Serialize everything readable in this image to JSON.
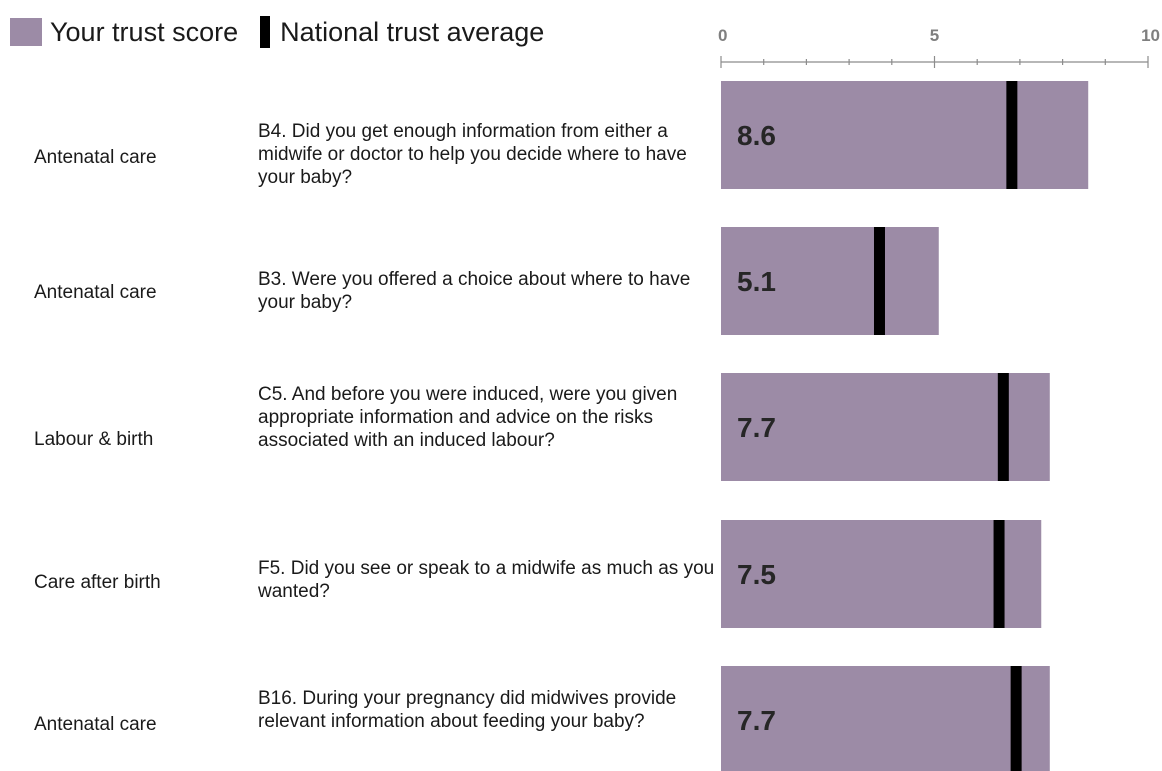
{
  "legend": {
    "score_label": "Your trust score",
    "avg_label": "National trust average"
  },
  "colors": {
    "score_bar": "#9c8ba6",
    "average_marker": "#000000",
    "axis": "#8c8c8c",
    "tick_label": "#7f7f7f"
  },
  "chart_data": {
    "type": "bar",
    "orientation": "horizontal",
    "xlim": [
      0,
      10
    ],
    "xticks": [
      "0",
      "5",
      "10"
    ],
    "rows": [
      {
        "category": "Antenatal care",
        "question": "B4. Did you get enough information from either a midwife or doctor to help you decide where to have your baby?",
        "score": 8.6,
        "score_label": "8.6",
        "national_average": 6.8
      },
      {
        "category": "Antenatal care",
        "question": "B3. Were you offered a choice about where to have your baby?",
        "score": 5.1,
        "score_label": "5.1",
        "national_average": 3.7
      },
      {
        "category": "Labour & birth",
        "question": "C5. And before you were induced, were you given appropriate information and advice on the risks associated with an induced labour?",
        "score": 7.7,
        "score_label": "7.7",
        "national_average": 6.6
      },
      {
        "category": "Care after birth",
        "question": "F5. Did you see or speak to a midwife as much as you wanted?",
        "score": 7.5,
        "score_label": "7.5",
        "national_average": 6.5
      },
      {
        "category": "Antenatal care",
        "question": "B16. During your pregnancy did midwives provide relevant information about feeding your baby?",
        "score": 7.7,
        "score_label": "7.7",
        "national_average": 6.9
      }
    ]
  }
}
